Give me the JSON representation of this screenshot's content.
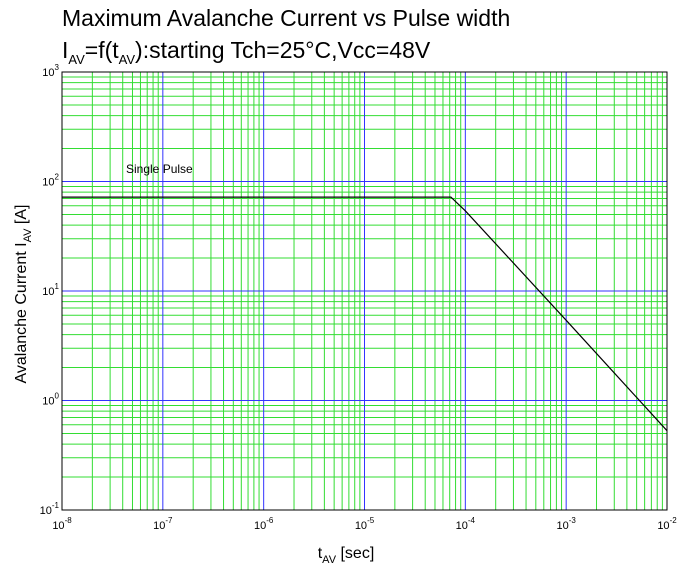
{
  "title": {
    "line1": "Maximum Avalanche Current vs Pulse width",
    "line2_prefix": "I",
    "line2_sub1": "AV",
    "line2_mid": "=f(t",
    "line2_sub2": "AV",
    "line2_suffix": "):starting Tch=25°C,Vcc=48V"
  },
  "xlabel": {
    "main": "t",
    "sub": "AV",
    "suffix": " [sec]"
  },
  "ylabel": {
    "main": "Avalanche Current  I",
    "sub": "AV",
    "suffix": "  [A]"
  },
  "x_ticks": [
    {
      "base": "10",
      "exp": "-8"
    },
    {
      "base": "10",
      "exp": "-7"
    },
    {
      "base": "10",
      "exp": "-6"
    },
    {
      "base": "10",
      "exp": "-5"
    },
    {
      "base": "10",
      "exp": "-4"
    },
    {
      "base": "10",
      "exp": "-3"
    },
    {
      "base": "10",
      "exp": "-2"
    }
  ],
  "y_ticks": [
    {
      "base": "10",
      "exp": "3"
    },
    {
      "base": "10",
      "exp": "2"
    },
    {
      "base": "10",
      "exp": "1"
    },
    {
      "base": "10",
      "exp": "0"
    },
    {
      "base": "10",
      "exp": "-1"
    }
  ],
  "annotation": "Single Pulse",
  "colors": {
    "major_grid": "#3333ff",
    "minor_grid": "#33dd33",
    "curve": "#000000",
    "background": "#ffffff"
  },
  "chart_data": {
    "type": "line",
    "title": "Maximum Avalanche Current vs Pulse width",
    "subtitle": "IAV=f(tAV):starting Tch=25°C,Vcc=48V",
    "xlabel": "tAV [sec]",
    "ylabel": "Avalanche Current IAV [A]",
    "x_scale": "log",
    "y_scale": "log",
    "xlim": [
      1e-08,
      0.01
    ],
    "ylim": [
      0.1,
      1000
    ],
    "grid": true,
    "annotations": [
      "Single Pulse"
    ],
    "series": [
      {
        "x": [
          1e-08,
          7.2e-05,
          0.0001,
          0.001,
          0.01
        ],
        "y": [
          72,
          72,
          54,
          5.4,
          0.53
        ]
      }
    ]
  }
}
